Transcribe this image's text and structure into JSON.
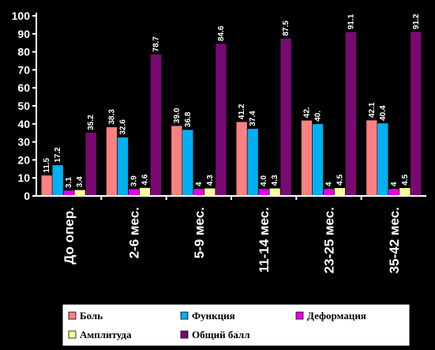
{
  "chart_data": {
    "type": "bar",
    "title": "",
    "xlabel": "",
    "ylabel": "",
    "ylim": [
      0,
      100
    ],
    "y_ticks": [
      0,
      10,
      20,
      30,
      40,
      50,
      60,
      70,
      80,
      90,
      100
    ],
    "grid": false,
    "legend_position": "bottom",
    "categories": [
      "До опер.",
      "2-6 мес.",
      "5-9 мес.",
      "11-14 мес.",
      "23-25 мес.",
      "35-42 мес."
    ],
    "series": [
      {
        "name": "Боль",
        "color": "#ff8080",
        "values": [
          11.5,
          38.3,
          39.0,
          41.2,
          42.0,
          42.1
        ],
        "labels": [
          "11.5",
          "38.3",
          "39.0",
          "41.2",
          "42.",
          "42.1"
        ]
      },
      {
        "name": "Функция",
        "color": "#00b0f0",
        "values": [
          17.2,
          32.6,
          36.8,
          37.4,
          40.0,
          40.4
        ],
        "labels": [
          "17.2",
          "32.6",
          "36.8",
          "37.4",
          "40.",
          "40.4"
        ]
      },
      {
        "name": "Деформация",
        "color": "#e600e6",
        "values": [
          3.1,
          3.9,
          4.0,
          4.0,
          4.0,
          4.0
        ],
        "labels": [
          "3.1",
          "3.9",
          "4",
          "4.0",
          "4",
          "4"
        ]
      },
      {
        "name": "Амплитуда",
        "color": "#ffff99",
        "values": [
          3.4,
          4.6,
          4.3,
          4.3,
          4.5,
          4.5
        ],
        "labels": [
          "3.4",
          "4.6",
          "4.3",
          "4.3",
          "4.5",
          "4.5"
        ]
      },
      {
        "name": "Общий балл",
        "color": "#7a0a73",
        "values": [
          35.2,
          78.7,
          84.6,
          87.5,
          91.1,
          91.2
        ],
        "labels": [
          "35.2",
          "78.7",
          "84.6",
          "87.5",
          "91.1",
          "91.2"
        ]
      }
    ]
  }
}
